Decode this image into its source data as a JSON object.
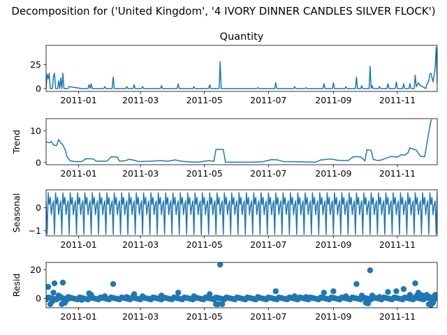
{
  "figure": {
    "suptitle": "Decomposition for ('United Kingdom', '4 IVORY DINNER CANDLES SILVER FLOCK')"
  },
  "colors": {
    "series": "#1f77b4",
    "axis": "#000000"
  },
  "chart_data": [
    {
      "type": "line",
      "title": "Quantity",
      "ylabel": "",
      "x_ticks": [
        "2011-01",
        "2011-03",
        "2011-05",
        "2011-07",
        "2011-09",
        "2011-11"
      ],
      "y_ticks": [
        "0",
        "25"
      ],
      "ylim": [
        -3,
        45
      ],
      "xlim": [
        "2010-12-01",
        "2011-12-09"
      ],
      "points": [
        [
          "2010-12-01",
          0
        ],
        [
          "2010-12-02",
          15
        ],
        [
          "2010-12-03",
          10
        ],
        [
          "2010-12-04",
          16
        ],
        [
          "2010-12-05",
          0
        ],
        [
          "2010-12-07",
          0
        ],
        [
          "2010-12-08",
          12
        ],
        [
          "2010-12-09",
          16
        ],
        [
          "2010-12-10",
          0
        ],
        [
          "2010-12-12",
          0
        ],
        [
          "2010-12-13",
          8
        ],
        [
          "2010-12-14",
          0
        ],
        [
          "2010-12-15",
          11
        ],
        [
          "2010-12-16",
          0
        ],
        [
          "2010-12-17",
          16
        ],
        [
          "2010-12-18",
          0
        ],
        [
          "2010-12-22",
          0
        ],
        [
          "2010-12-23",
          2
        ],
        [
          "2011-01-04",
          0
        ],
        [
          "2011-01-10",
          0
        ],
        [
          "2011-01-11",
          4
        ],
        [
          "2011-01-12",
          0
        ],
        [
          "2011-01-13",
          5
        ],
        [
          "2011-01-14",
          0
        ],
        [
          "2011-01-25",
          0
        ],
        [
          "2011-01-26",
          2
        ],
        [
          "2011-01-27",
          0
        ],
        [
          "2011-02-02",
          0
        ],
        [
          "2011-02-03",
          12
        ],
        [
          "2011-02-04",
          0
        ],
        [
          "2011-02-15",
          0
        ],
        [
          "2011-02-16",
          2
        ],
        [
          "2011-02-17",
          0
        ],
        [
          "2011-02-22",
          0
        ],
        [
          "2011-02-23",
          4
        ],
        [
          "2011-02-24",
          0
        ],
        [
          "2011-03-02",
          0
        ],
        [
          "2011-03-03",
          2
        ],
        [
          "2011-03-04",
          0
        ],
        [
          "2011-03-20",
          0
        ],
        [
          "2011-03-21",
          3
        ],
        [
          "2011-03-22",
          0
        ],
        [
          "2011-04-05",
          0
        ],
        [
          "2011-04-06",
          5
        ],
        [
          "2011-04-07",
          0
        ],
        [
          "2011-04-20",
          0
        ],
        [
          "2011-04-21",
          2
        ],
        [
          "2011-04-22",
          0
        ],
        [
          "2011-05-05",
          0
        ],
        [
          "2011-05-06",
          4
        ],
        [
          "2011-05-07",
          0
        ],
        [
          "2011-05-15",
          0
        ],
        [
          "2011-05-16",
          28
        ],
        [
          "2011-05-17",
          0
        ],
        [
          "2011-06-20",
          0
        ],
        [
          "2011-06-21",
          1
        ],
        [
          "2011-06-22",
          0
        ],
        [
          "2011-07-07",
          0
        ],
        [
          "2011-07-08",
          6
        ],
        [
          "2011-07-09",
          0
        ],
        [
          "2011-07-25",
          0
        ],
        [
          "2011-07-26",
          2
        ],
        [
          "2011-07-27",
          0
        ],
        [
          "2011-08-05",
          0
        ],
        [
          "2011-08-06",
          1
        ],
        [
          "2011-08-07",
          0
        ],
        [
          "2011-08-22",
          0
        ],
        [
          "2011-08-23",
          5
        ],
        [
          "2011-08-24",
          0
        ],
        [
          "2011-08-31",
          0
        ],
        [
          "2011-09-01",
          6
        ],
        [
          "2011-09-02",
          0
        ],
        [
          "2011-09-12",
          0
        ],
        [
          "2011-09-13",
          2
        ],
        [
          "2011-09-14",
          0
        ],
        [
          "2011-09-22",
          0
        ],
        [
          "2011-09-23",
          12
        ],
        [
          "2011-09-24",
          0
        ],
        [
          "2011-09-27",
          0
        ],
        [
          "2011-09-28",
          3
        ],
        [
          "2011-09-29",
          0
        ],
        [
          "2011-10-05",
          0
        ],
        [
          "2011-10-06",
          23
        ],
        [
          "2011-10-07",
          0
        ],
        [
          "2011-10-08",
          3
        ],
        [
          "2011-10-09",
          0
        ],
        [
          "2011-10-14",
          0
        ],
        [
          "2011-10-15",
          2
        ],
        [
          "2011-10-16",
          0
        ],
        [
          "2011-10-22",
          0
        ],
        [
          "2011-10-23",
          5
        ],
        [
          "2011-10-24",
          0
        ],
        [
          "2011-10-30",
          0
        ],
        [
          "2011-10-31",
          7
        ],
        [
          "2011-11-01",
          0
        ],
        [
          "2011-11-06",
          0
        ],
        [
          "2011-11-07",
          5
        ],
        [
          "2011-11-08",
          0
        ],
        [
          "2011-11-12",
          0
        ],
        [
          "2011-11-13",
          5
        ],
        [
          "2011-11-14",
          0
        ],
        [
          "2011-11-17",
          0
        ],
        [
          "2011-11-18",
          14
        ],
        [
          "2011-11-19",
          2
        ],
        [
          "2011-11-21",
          6
        ],
        [
          "2011-11-23",
          3
        ],
        [
          "2011-11-25",
          2
        ],
        [
          "2011-11-28",
          0
        ],
        [
          "2011-11-29",
          4
        ],
        [
          "2011-12-01",
          8
        ],
        [
          "2011-12-02",
          15
        ],
        [
          "2011-12-03",
          16
        ],
        [
          "2011-12-05",
          7
        ],
        [
          "2011-12-07",
          21
        ],
        [
          "2011-12-08",
          43
        ],
        [
          "2011-12-09",
          5
        ]
      ]
    },
    {
      "type": "line",
      "title": "",
      "ylabel": "Trend",
      "x_ticks": [
        "2011-01",
        "2011-03",
        "2011-05",
        "2011-07",
        "2011-09",
        "2011-11"
      ],
      "y_ticks": [
        "0",
        "10"
      ],
      "ylim": [
        -0.7,
        13.8
      ],
      "xlim": [
        "2010-12-01",
        "2011-12-09"
      ],
      "points": [
        [
          "2010-12-01",
          6.5
        ],
        [
          "2010-12-04",
          6.2
        ],
        [
          "2010-12-06",
          6.6
        ],
        [
          "2010-12-08",
          5.5
        ],
        [
          "2010-12-11",
          5.3
        ],
        [
          "2010-12-13",
          7.2
        ],
        [
          "2010-12-15",
          6.2
        ],
        [
          "2010-12-17",
          5.5
        ],
        [
          "2010-12-19",
          4.2
        ],
        [
          "2010-12-21",
          1.8
        ],
        [
          "2010-12-24",
          0.5
        ],
        [
          "2010-12-28",
          0.3
        ],
        [
          "2011-01-04",
          0.3
        ],
        [
          "2011-01-08",
          1.2
        ],
        [
          "2011-01-15",
          1.1
        ],
        [
          "2011-01-18",
          0.4
        ],
        [
          "2011-01-28",
          0.4
        ],
        [
          "2011-02-01",
          1.8
        ],
        [
          "2011-02-07",
          1.7
        ],
        [
          "2011-02-09",
          0.4
        ],
        [
          "2011-02-15",
          0.6
        ],
        [
          "2011-02-18",
          1.0
        ],
        [
          "2011-02-23",
          0.7
        ],
        [
          "2011-02-27",
          0.3
        ],
        [
          "2011-03-10",
          0.4
        ],
        [
          "2011-03-20",
          0.6
        ],
        [
          "2011-03-27",
          0.4
        ],
        [
          "2011-04-03",
          0.8
        ],
        [
          "2011-04-09",
          0.4
        ],
        [
          "2011-04-15",
          0.2
        ],
        [
          "2011-04-25",
          0.1
        ],
        [
          "2011-05-05",
          0.6
        ],
        [
          "2011-05-10",
          0.4
        ],
        [
          "2011-05-12",
          4.1
        ],
        [
          "2011-05-19",
          4.1
        ],
        [
          "2011-05-21",
          0.1
        ],
        [
          "2011-06-15",
          0.1
        ],
        [
          "2011-06-25",
          0.2
        ],
        [
          "2011-07-04",
          0.9
        ],
        [
          "2011-07-10",
          0.8
        ],
        [
          "2011-07-15",
          0.3
        ],
        [
          "2011-08-01",
          0.2
        ],
        [
          "2011-08-15",
          0.1
        ],
        [
          "2011-08-20",
          0.8
        ],
        [
          "2011-08-30",
          1.1
        ],
        [
          "2011-09-05",
          0.7
        ],
        [
          "2011-09-15",
          0.6
        ],
        [
          "2011-09-20",
          1.8
        ],
        [
          "2011-09-27",
          1.8
        ],
        [
          "2011-10-01",
          0.5
        ],
        [
          "2011-10-03",
          4.0
        ],
        [
          "2011-10-07",
          3.8
        ],
        [
          "2011-10-09",
          1.0
        ],
        [
          "2011-10-13",
          0.6
        ],
        [
          "2011-10-17",
          0.8
        ],
        [
          "2011-10-20",
          1.2
        ],
        [
          "2011-10-26",
          1.9
        ],
        [
          "2011-11-01",
          1.7
        ],
        [
          "2011-11-05",
          2.5
        ],
        [
          "2011-11-08",
          2.3
        ],
        [
          "2011-11-11",
          3.0
        ],
        [
          "2011-11-13",
          4.6
        ],
        [
          "2011-11-19",
          3.9
        ],
        [
          "2011-11-23",
          2.0
        ],
        [
          "2011-11-27",
          1.8
        ],
        [
          "2011-12-01",
          9.5
        ],
        [
          "2011-12-03",
          13.2
        ],
        [
          "2011-12-04",
          13.5
        ]
      ]
    },
    {
      "type": "line",
      "title": "",
      "ylabel": "Seasonal",
      "x_ticks": [
        "2011-01",
        "2011-03",
        "2011-05",
        "2011-07",
        "2011-09",
        "2011-11"
      ],
      "y_ticks": [
        "−1",
        "0"
      ],
      "ylim": [
        -1.22,
        0.78
      ],
      "xlim": [
        "2010-12-01",
        "2011-12-09"
      ],
      "period_days": 7,
      "cycle_values": [
        0.3,
        -1.15,
        0.65,
        0.15,
        0.45,
        -0.3,
        0.1
      ],
      "points": []
    },
    {
      "type": "scatter",
      "title": "",
      "ylabel": "Resid",
      "x_ticks": [
        "2011-01",
        "2011-03",
        "2011-05",
        "2011-07",
        "2011-09",
        "2011-11"
      ],
      "y_ticks": [
        "0",
        "20"
      ],
      "ylim": [
        -6.5,
        25
      ],
      "xlim": [
        "2010-12-01",
        "2011-12-09"
      ],
      "points": [
        [
          "2010-12-02",
          8
        ],
        [
          "2010-12-03",
          8
        ],
        [
          "2010-12-05",
          -4
        ],
        [
          "2010-12-07",
          -2
        ],
        [
          "2010-12-08",
          4
        ],
        [
          "2010-12-09",
          10.5
        ],
        [
          "2010-12-13",
          2
        ],
        [
          "2010-12-15",
          1
        ],
        [
          "2010-12-16",
          -4
        ],
        [
          "2010-12-17",
          11
        ],
        [
          "2010-12-19",
          -3
        ],
        [
          "2010-12-22",
          1
        ],
        [
          "2010-12-23",
          0
        ],
        [
          "2011-01-04",
          -1
        ],
        [
          "2011-01-11",
          3.5
        ],
        [
          "2011-01-13",
          2.5
        ],
        [
          "2011-01-26",
          1.5
        ],
        [
          "2011-02-03",
          10
        ],
        [
          "2011-02-16",
          1
        ],
        [
          "2011-02-23",
          3
        ],
        [
          "2011-03-03",
          1.5
        ],
        [
          "2011-03-21",
          2
        ],
        [
          "2011-04-06",
          4
        ],
        [
          "2011-04-21",
          1.5
        ],
        [
          "2011-05-06",
          3
        ],
        [
          "2011-05-12",
          -4
        ],
        [
          "2011-05-13",
          -4
        ],
        [
          "2011-05-14",
          -4
        ],
        [
          "2011-05-16",
          23.5
        ],
        [
          "2011-05-18",
          -4
        ],
        [
          "2011-06-21",
          1
        ],
        [
          "2011-07-08",
          5
        ],
        [
          "2011-07-26",
          1.5
        ],
        [
          "2011-08-06",
          1
        ],
        [
          "2011-08-23",
          4
        ],
        [
          "2011-09-01",
          5
        ],
        [
          "2011-09-13",
          1.5
        ],
        [
          "2011-09-23",
          10
        ],
        [
          "2011-09-28",
          2
        ],
        [
          "2011-10-02",
          -3
        ],
        [
          "2011-10-04",
          -3.5
        ],
        [
          "2011-10-06",
          19.5
        ],
        [
          "2011-10-08",
          2
        ],
        [
          "2011-10-15",
          1
        ],
        [
          "2011-10-23",
          4.5
        ],
        [
          "2011-10-31",
          5
        ],
        [
          "2011-11-07",
          6.5
        ],
        [
          "2011-11-13",
          2.5
        ],
        [
          "2011-11-18",
          10.5
        ],
        [
          "2011-11-19",
          1.5
        ],
        [
          "2011-11-21",
          4
        ],
        [
          "2011-11-23",
          2.5
        ],
        [
          "2011-11-25",
          2
        ],
        [
          "2011-11-29",
          2.5
        ],
        [
          "2011-12-01",
          -4
        ],
        [
          "2011-12-02",
          1
        ],
        [
          "2011-12-03",
          -4.5
        ],
        [
          "2011-12-05",
          -3
        ],
        [
          "2011-12-07",
          2.5
        ],
        [
          "2011-12-08",
          2
        ]
      ]
    }
  ]
}
